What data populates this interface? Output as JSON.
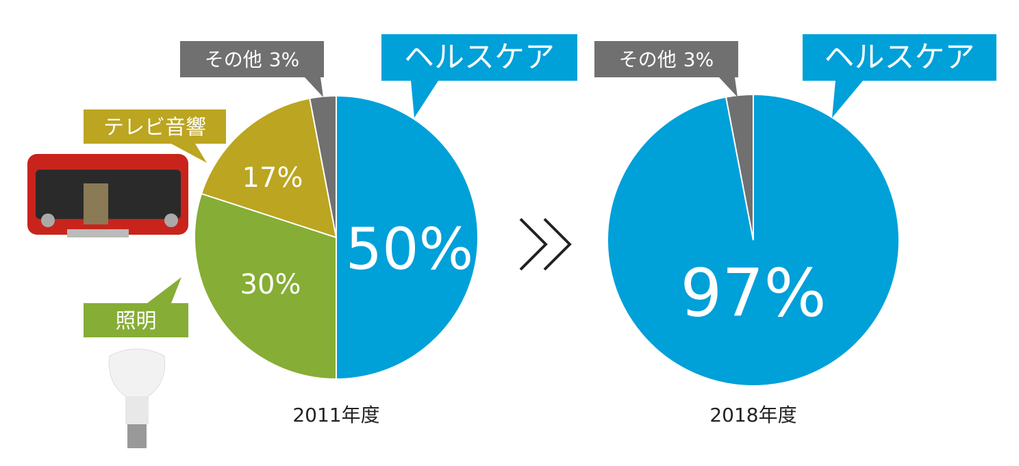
{
  "chart_data": [
    {
      "type": "pie",
      "title": "2011年度",
      "categories": [
        "ヘルスケア",
        "照明",
        "テレビ音響",
        "その他"
      ],
      "values": [
        50,
        30,
        17,
        3
      ],
      "value_labels": [
        "50%",
        "30%",
        "17%",
        "3%"
      ],
      "colors": [
        "#00a0d9",
        "#86ad35",
        "#bca520",
        "#707070"
      ]
    },
    {
      "type": "pie",
      "title": "2018年度",
      "categories": [
        "ヘルスケア",
        "その他"
      ],
      "values": [
        97,
        3
      ],
      "value_labels": [
        "97%",
        "3%"
      ],
      "colors": [
        "#00a0d9",
        "#707070"
      ]
    }
  ]
}
